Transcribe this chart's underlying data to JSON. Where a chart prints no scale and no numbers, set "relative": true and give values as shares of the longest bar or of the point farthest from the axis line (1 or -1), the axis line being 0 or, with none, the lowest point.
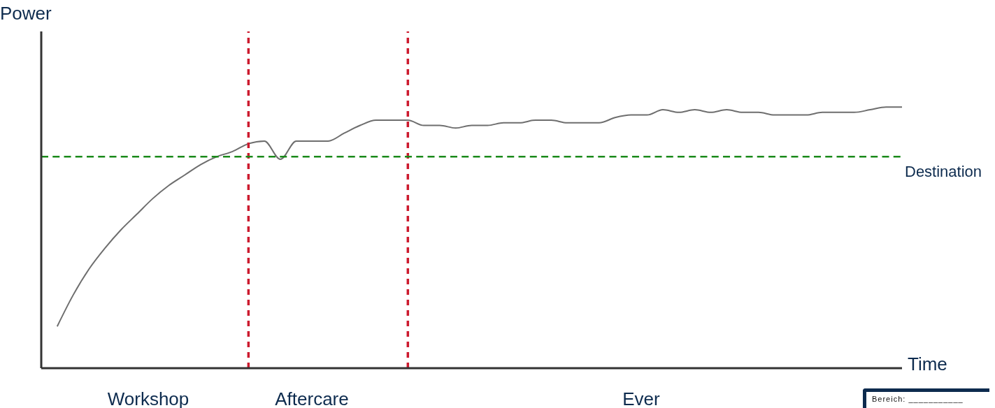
{
  "chart_data": {
    "type": "line",
    "xlabel": "Time",
    "ylabel": "Power",
    "relative": true,
    "marker": "none",
    "categories": [
      null,
      null,
      null,
      null,
      null,
      null,
      null,
      null,
      null,
      null,
      null,
      null,
      null,
      null,
      null,
      null,
      null,
      null,
      null,
      null,
      null,
      null,
      null,
      null,
      null,
      null,
      null,
      null,
      null,
      null,
      null,
      null,
      null,
      null,
      null,
      null,
      null,
      null,
      null,
      null,
      null,
      null,
      null,
      null,
      null,
      null,
      null,
      null,
      null,
      null,
      null,
      null,
      null,
      null,
      null
    ],
    "series": [
      {
        "color": "#6e6e6e",
        "values": [
          null,
          0.16,
          0.28,
          0.38,
          0.46,
          0.53,
          0.59,
          0.65,
          0.7,
          0.74,
          0.78,
          0.81,
          0.83,
          0.86,
          0.87,
          0.8,
          0.87,
          0.87,
          0.87,
          0.9,
          0.93,
          0.95,
          0.95,
          0.95,
          0.93,
          0.93,
          0.92,
          0.93,
          0.93,
          0.94,
          0.94,
          0.95,
          0.95,
          0.94,
          0.94,
          0.94,
          0.96,
          0.97,
          0.97,
          0.99,
          0.98,
          0.99,
          0.98,
          0.99,
          0.98,
          0.98,
          0.97,
          0.97,
          0.97,
          0.98,
          0.98,
          0.98,
          0.99,
          1,
          1
        ]
      }
    ],
    "ref_lines": [
      {
        "axis": "y",
        "value": 0.81,
        "color": "#1a8a1a",
        "line_style": "dashed",
        "label": "Destination"
      }
    ],
    "annotations": [
      "Workshop",
      "Aftercare",
      "Ever",
      "Bereich: ___________"
    ]
  }
}
